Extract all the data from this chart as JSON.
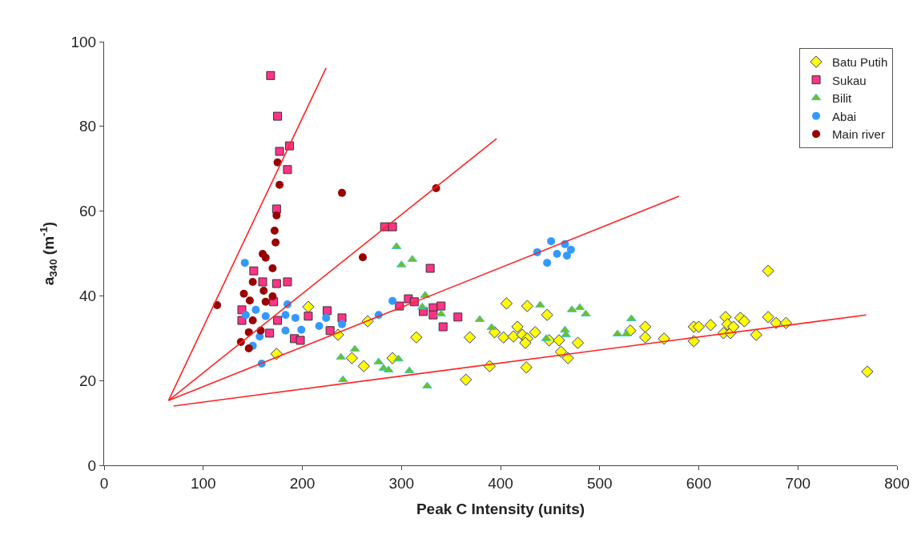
{
  "chart_data": {
    "type": "scatter",
    "xlabel": "Peak C Intensity (units)",
    "ylabel": "a$_{340}$ (m$^{-1}$)",
    "xlim": [
      0,
      800
    ],
    "xticks": [
      0,
      100,
      200,
      300,
      400,
      500,
      600,
      700,
      800
    ],
    "ylim": [
      0,
      100
    ],
    "yticks": [
      0,
      20,
      40,
      60,
      80,
      100
    ],
    "legend": "top right",
    "series": [
      {
        "name": "Batu Putih",
        "marker": "diamond",
        "color": "#ffff00",
        "x": [
          174,
          206,
          266,
          236,
          250,
          262,
          291,
          315,
          365,
          369,
          389,
          406,
          394,
          403,
          413,
          417,
          427,
          422,
          427,
          425,
          435,
          426,
          447,
          449,
          459,
          461,
          468,
          478,
          670,
          531,
          546,
          546,
          565,
          595,
          600,
          595,
          612,
          627,
          629,
          625,
          632,
          635,
          642,
          646,
          658,
          670,
          678,
          688,
          770
        ],
        "values": [
          26.3,
          37.4,
          34.0,
          30.8,
          25.3,
          23.4,
          25.3,
          30.2,
          20.2,
          30.2,
          23.4,
          38.2,
          31.4,
          30.2,
          30.4,
          32.7,
          37.6,
          30.8,
          29.9,
          28.9,
          31.4,
          23.1,
          35.5,
          29.5,
          29.5,
          26.8,
          25.3,
          28.9,
          45.9,
          31.8,
          32.7,
          30.2,
          29.9,
          32.7,
          32.7,
          29.3,
          33.1,
          35.0,
          33.3,
          31.2,
          31.2,
          32.7,
          34.8,
          34.0,
          30.8,
          35.0,
          33.6,
          33.6,
          22.1
        ]
      },
      {
        "name": "Sukau",
        "marker": "square",
        "color": "#ff3388",
        "x": [
          168,
          175,
          187,
          177,
          185,
          174,
          151,
          160,
          174,
          185,
          171,
          139,
          139,
          175,
          167,
          192,
          198,
          206,
          225,
          228,
          283,
          291,
          329,
          307,
          313,
          298,
          322,
          332,
          340,
          332,
          342,
          357,
          240
        ],
        "values": [
          92.0,
          82.4,
          75.4,
          74.1,
          69.8,
          60.5,
          45.9,
          43.3,
          42.9,
          43.3,
          38.6,
          36.7,
          34.2,
          34.2,
          31.2,
          29.9,
          29.5,
          35.2,
          36.5,
          31.8,
          56.3,
          56.3,
          46.5,
          39.3,
          38.6,
          37.6,
          36.3,
          37.2,
          37.6,
          35.5,
          32.7,
          35.0,
          34.8
        ]
      },
      {
        "name": "Bilit",
        "marker": "triangle",
        "color": "#77bb22",
        "x": [
          295,
          311,
          300,
          324,
          321,
          340,
          379,
          391,
          440,
          465,
          446,
          472,
          480,
          486,
          466,
          253,
          239,
          241,
          277,
          282,
          287,
          297,
          308,
          326,
          532,
          518,
          527
        ],
        "values": [
          51.6,
          48.6,
          47.3,
          40.1,
          37.4,
          35.7,
          34.4,
          32.5,
          37.8,
          31.9,
          29.9,
          36.7,
          37.2,
          35.7,
          30.8,
          27.4,
          25.5,
          20.2,
          24.4,
          22.9,
          22.5,
          25.1,
          22.3,
          18.7,
          34.6,
          31.0,
          31.0
        ]
      },
      {
        "name": "Abai",
        "marker": "circle",
        "color": "#3399ff",
        "x": [
          142,
          185,
          143,
          153,
          163,
          183,
          183,
          193,
          199,
          217,
          224,
          150,
          159,
          157,
          291,
          277,
          240,
          437,
          451,
          457,
          447,
          465,
          471,
          467
        ],
        "values": [
          47.8,
          38.0,
          35.5,
          36.7,
          35.2,
          35.5,
          31.8,
          34.8,
          32.0,
          32.9,
          34.8,
          28.2,
          24.0,
          30.4,
          38.8,
          35.5,
          33.3,
          50.3,
          52.9,
          49.9,
          47.8,
          52.2,
          50.9,
          49.5
        ]
      },
      {
        "name": "Main river",
        "marker": "circle",
        "color": "#990000",
        "x": [
          175,
          177,
          174,
          172,
          173,
          160,
          163,
          170,
          114,
          150,
          141,
          147,
          161,
          170,
          163,
          150,
          158,
          146,
          138,
          146,
          261,
          240,
          335
        ],
        "values": [
          71.5,
          66.2,
          59.0,
          55.4,
          52.6,
          49.9,
          49.0,
          46.5,
          37.8,
          43.3,
          40.5,
          38.9,
          41.2,
          39.9,
          38.6,
          34.2,
          31.8,
          31.4,
          29.1,
          27.6,
          49.1,
          64.3,
          65.4
        ]
      },
      {
        "type": "line",
        "color": "#ff2222",
        "x": [
          65,
          224
        ],
        "values": [
          15.3,
          93.8
        ]
      },
      {
        "type": "line",
        "color": "#ff2222",
        "x": [
          65,
          396
        ],
        "values": [
          15.3,
          77.1
        ]
      },
      {
        "type": "line",
        "color": "#ff2222",
        "x": [
          65,
          580
        ],
        "values": [
          15.3,
          63.5
        ]
      },
      {
        "type": "line",
        "color": "#ff2222",
        "x": [
          70,
          769
        ],
        "values": [
          14.0,
          35.5
        ]
      }
    ]
  }
}
